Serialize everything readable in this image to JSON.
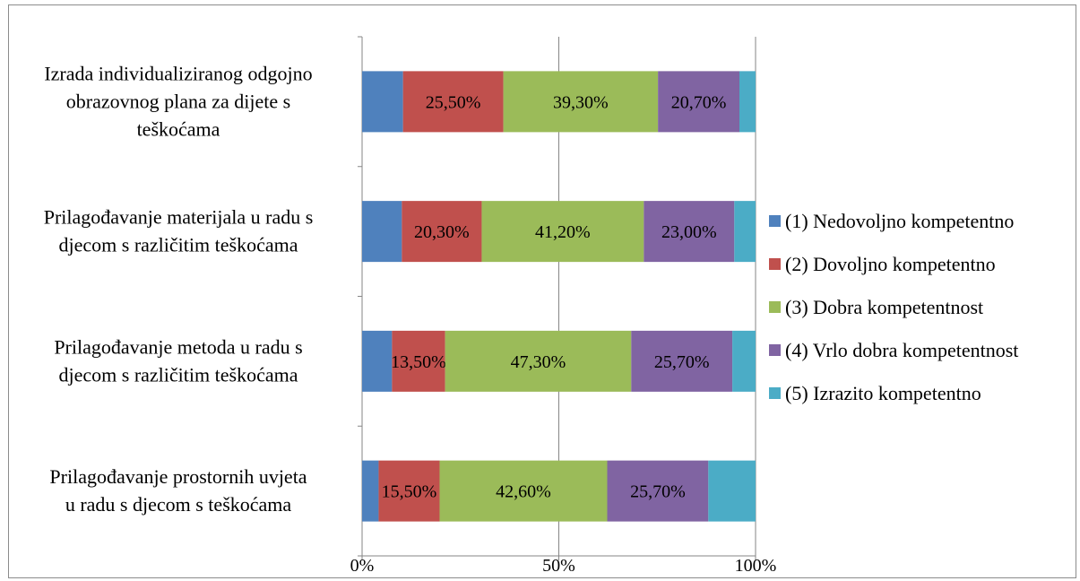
{
  "chart_data": {
    "type": "bar",
    "orientation": "horizontal",
    "stacked": "percent",
    "categories": [
      [
        "Izrada individualiziranog odgojno",
        "obrazovnog plana za dijete s",
        "teškoćama"
      ],
      [
        "Prilagođavanje materijala u radu s",
        "djecom s različitim teškoćama"
      ],
      [
        "Prilagođavanje metoda u radu s",
        "djecom s različitim teškoćama"
      ],
      [
        "Prilagođavanje prostornih uvjeta",
        "u radu s djecom s teškoćama"
      ]
    ],
    "series": [
      {
        "name": "(1) Nedovoljno kompetentno",
        "color": "#4f81bd",
        "values": [
          10.4,
          10.1,
          7.6,
          4.2
        ],
        "labels": [
          "",
          "",
          "",
          ""
        ]
      },
      {
        "name": "(2) Dovoljno kompetentno",
        "color": "#c0504d",
        "values": [
          25.5,
          20.3,
          13.5,
          15.5
        ],
        "labels": [
          "25,50%",
          "20,30%",
          "13,50%",
          "15,50%"
        ]
      },
      {
        "name": "(3) Dobra kompetentnost",
        "color": "#9bbb59",
        "values": [
          39.3,
          41.2,
          47.3,
          42.6
        ],
        "labels": [
          "39,30%",
          "41,20%",
          "47,30%",
          "42,60%"
        ]
      },
      {
        "name": "(4) Vrlo dobra kompetentnost",
        "color": "#8064a2",
        "values": [
          20.7,
          23.0,
          25.7,
          25.7
        ],
        "labels": [
          "20,70%",
          "23,00%",
          "25,70%",
          "25,70%"
        ]
      },
      {
        "name": "(5) Izrazito kompetentno",
        "color": "#4bacc6",
        "values": [
          4.1,
          5.4,
          5.9,
          12.0
        ],
        "labels": [
          "",
          "",
          "",
          ""
        ]
      }
    ],
    "xlim": [
      0,
      100
    ],
    "xticks": [
      "0%",
      "50%",
      "100%"
    ],
    "grid": true,
    "legend": "right"
  }
}
